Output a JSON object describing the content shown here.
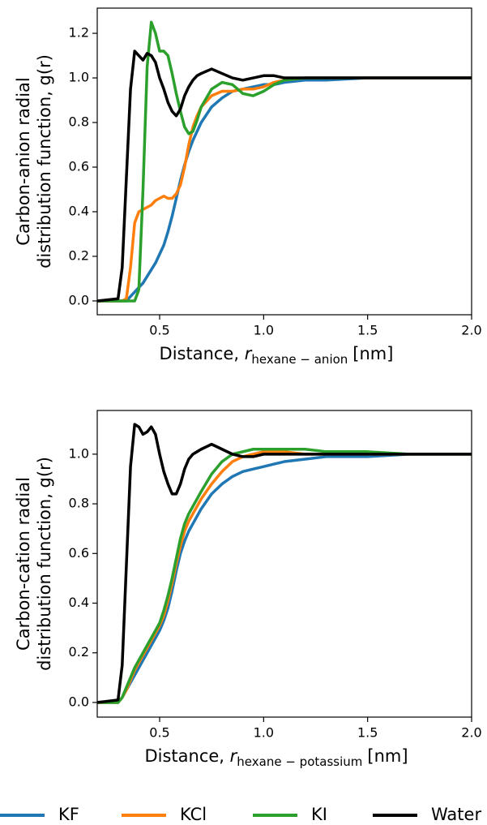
{
  "chart_data": [
    {
      "type": "line",
      "xlabel": "Distance, ",
      "xlabel_var": "r",
      "xlabel_sub": "hexane − anion",
      "xlabel_unit": "[nm]",
      "ylabel": [
        "Carbon-anion radial",
        "distribution function, g(r)"
      ],
      "xlim": [
        0.2,
        2.0
      ],
      "ylim": [
        -0.062,
        1.313
      ],
      "xticks": [
        0.5,
        {
          "value": 1,
          "label": "1.0"
        },
        1.5,
        {
          "value": 2,
          "label": "2.0"
        }
      ],
      "yticks": [
        {
          "value": 0,
          "label": "0.0"
        },
        0.2,
        0.4,
        0.6,
        0.8,
        {
          "value": 1,
          "label": "1.0"
        },
        1.2
      ],
      "x": [
        0.2,
        0.3,
        0.32,
        0.34,
        0.36,
        0.38,
        0.4,
        0.42,
        0.44,
        0.46,
        0.48,
        0.5,
        0.52,
        0.54,
        0.56,
        0.58,
        0.6,
        0.62,
        0.64,
        0.66,
        0.68,
        0.7,
        0.75,
        0.8,
        0.85,
        0.9,
        0.95,
        1.0,
        1.05,
        1.1,
        1.2,
        1.3,
        1.5,
        1.7,
        2.0
      ],
      "series": [
        {
          "name": "KF",
          "color": "#1f77b4",
          "values": [
            0,
            0,
            0,
            0,
            0.02,
            0.04,
            0.06,
            0.08,
            0.11,
            0.14,
            0.17,
            0.21,
            0.25,
            0.31,
            0.38,
            0.46,
            0.54,
            0.61,
            0.67,
            0.72,
            0.76,
            0.8,
            0.87,
            0.91,
            0.94,
            0.95,
            0.96,
            0.97,
            0.97,
            0.98,
            0.99,
            0.99,
            1.0,
            1.0,
            1.0
          ]
        },
        {
          "name": "KCl",
          "color": "#ff7f0e",
          "values": [
            0,
            0,
            0,
            0.01,
            0.15,
            0.35,
            0.4,
            0.41,
            0.42,
            0.43,
            0.45,
            0.46,
            0.47,
            0.46,
            0.46,
            0.48,
            0.52,
            0.6,
            0.7,
            0.78,
            0.83,
            0.87,
            0.92,
            0.94,
            0.94,
            0.95,
            0.95,
            0.96,
            0.98,
            0.99,
            1.0,
            1.0,
            1.0,
            1.0,
            1.0
          ]
        },
        {
          "name": "KI",
          "color": "#2ca02c",
          "values": [
            0,
            0,
            0,
            0,
            0,
            0,
            0.05,
            0.5,
            1.05,
            1.25,
            1.2,
            1.12,
            1.12,
            1.1,
            1.02,
            0.93,
            0.85,
            0.78,
            0.75,
            0.76,
            0.81,
            0.87,
            0.95,
            0.98,
            0.97,
            0.93,
            0.92,
            0.94,
            0.97,
            0.99,
            1.0,
            1.0,
            1.0,
            1.0,
            1.0
          ]
        },
        {
          "name": "Water",
          "color": "#000000",
          "values": [
            0,
            0.01,
            0.15,
            0.55,
            0.95,
            1.12,
            1.1,
            1.08,
            1.11,
            1.1,
            1.07,
            1.0,
            0.95,
            0.89,
            0.85,
            0.83,
            0.86,
            0.92,
            0.96,
            0.99,
            1.01,
            1.02,
            1.04,
            1.02,
            1.0,
            0.99,
            1.0,
            1.01,
            1.01,
            1.0,
            1.0,
            1.0,
            1.0,
            1.0,
            1.0
          ]
        }
      ]
    },
    {
      "type": "line",
      "xlabel": "Distance, ",
      "xlabel_var": "r",
      "xlabel_sub": "hexane − potassium",
      "xlabel_unit": "[nm]",
      "ylabel": [
        "Carbon-cation radial",
        "distribution function, g(r)"
      ],
      "xlim": [
        0.2,
        2.0
      ],
      "ylim": [
        -0.059,
        1.176
      ],
      "xticks": [
        0.5,
        {
          "value": 1,
          "label": "1.0"
        },
        1.5,
        {
          "value": 2,
          "label": "2.0"
        }
      ],
      "yticks": [
        {
          "value": 0,
          "label": "0.0"
        },
        0.2,
        0.4,
        0.6,
        0.8,
        {
          "value": 1,
          "label": "1.0"
        }
      ],
      "x": [
        0.2,
        0.3,
        0.32,
        0.34,
        0.36,
        0.38,
        0.4,
        0.42,
        0.44,
        0.46,
        0.48,
        0.5,
        0.52,
        0.54,
        0.56,
        0.58,
        0.6,
        0.62,
        0.64,
        0.66,
        0.68,
        0.7,
        0.75,
        0.8,
        0.85,
        0.9,
        0.95,
        1.0,
        1.05,
        1.1,
        1.2,
        1.3,
        1.5,
        1.7,
        2.0
      ],
      "series": [
        {
          "color": "#1f77b4",
          "values": [
            0,
            0,
            0.02,
            0.05,
            0.08,
            0.11,
            0.14,
            0.17,
            0.2,
            0.23,
            0.26,
            0.29,
            0.33,
            0.38,
            0.45,
            0.53,
            0.6,
            0.65,
            0.69,
            0.72,
            0.75,
            0.78,
            0.84,
            0.88,
            0.91,
            0.93,
            0.94,
            0.95,
            0.96,
            0.97,
            0.98,
            0.99,
            0.99,
            1.0,
            1.0
          ]
        },
        {
          "color": "#ff7f0e",
          "values": [
            0,
            0,
            0.02,
            0.05,
            0.09,
            0.13,
            0.16,
            0.19,
            0.22,
            0.25,
            0.28,
            0.31,
            0.35,
            0.41,
            0.48,
            0.56,
            0.63,
            0.69,
            0.73,
            0.76,
            0.79,
            0.82,
            0.88,
            0.93,
            0.97,
            0.99,
            1.0,
            1.01,
            1.01,
            1.01,
            1.0,
            1.0,
            1.0,
            1.0,
            1.0
          ]
        },
        {
          "color": "#2ca02c",
          "values": [
            0,
            0,
            0.02,
            0.06,
            0.1,
            0.14,
            0.17,
            0.2,
            0.23,
            0.26,
            0.29,
            0.32,
            0.37,
            0.43,
            0.5,
            0.58,
            0.66,
            0.72,
            0.76,
            0.79,
            0.82,
            0.85,
            0.92,
            0.97,
            1.0,
            1.01,
            1.02,
            1.02,
            1.02,
            1.02,
            1.02,
            1.01,
            1.01,
            1.0,
            1.0
          ]
        },
        {
          "color": "#000000",
          "values": [
            0,
            0.01,
            0.15,
            0.55,
            0.95,
            1.12,
            1.11,
            1.08,
            1.09,
            1.11,
            1.08,
            1.0,
            0.93,
            0.88,
            0.84,
            0.84,
            0.88,
            0.94,
            0.98,
            1.0,
            1.01,
            1.02,
            1.04,
            1.02,
            1.0,
            0.99,
            0.99,
            1.0,
            1.0,
            1.0,
            1.0,
            1.0,
            1.0,
            1.0,
            1.0
          ]
        }
      ]
    }
  ]
}
